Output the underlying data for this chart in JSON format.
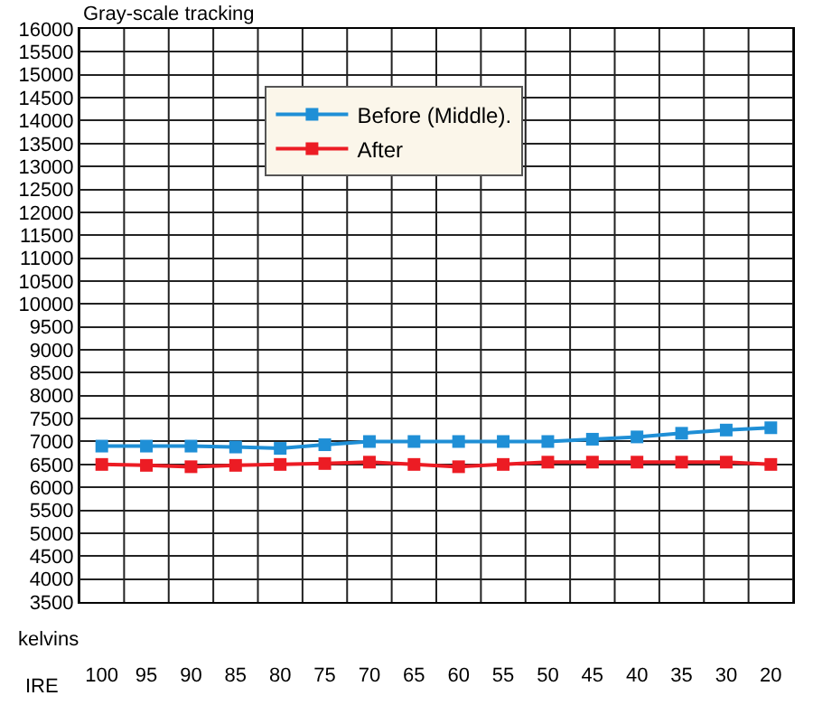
{
  "chart_data": {
    "type": "line",
    "title": "Gray-scale tracking",
    "xlabel": "IRE",
    "ylabel": "kelvins",
    "categories": [
      "100",
      "95",
      "90",
      "85",
      "80",
      "75",
      "70",
      "65",
      "60",
      "55",
      "50",
      "45",
      "40",
      "35",
      "30",
      "20"
    ],
    "series": [
      {
        "name": "Before (Middle).",
        "color": "#1f8fd6",
        "values": [
          6900,
          6900,
          6900,
          6880,
          6850,
          6930,
          7000,
          7000,
          7000,
          7000,
          7000,
          7050,
          7100,
          7180,
          7250,
          7300
        ]
      },
      {
        "name": "After",
        "color": "#ec1c24",
        "values": [
          6500,
          6480,
          6450,
          6480,
          6500,
          6520,
          6550,
          6500,
          6450,
          6500,
          6550,
          6550,
          6550,
          6550,
          6550,
          6500
        ]
      }
    ],
    "ylim": [
      3500,
      16000
    ],
    "yticks": [
      3500,
      4000,
      4500,
      5000,
      5500,
      6000,
      6500,
      7000,
      7500,
      8000,
      8500,
      9000,
      9500,
      10000,
      10500,
      11000,
      11500,
      12000,
      12500,
      13000,
      13500,
      14000,
      14500,
      15000,
      15500,
      16000
    ],
    "grid": true,
    "legend": "top left",
    "marker": "square",
    "line_style": "solid"
  }
}
